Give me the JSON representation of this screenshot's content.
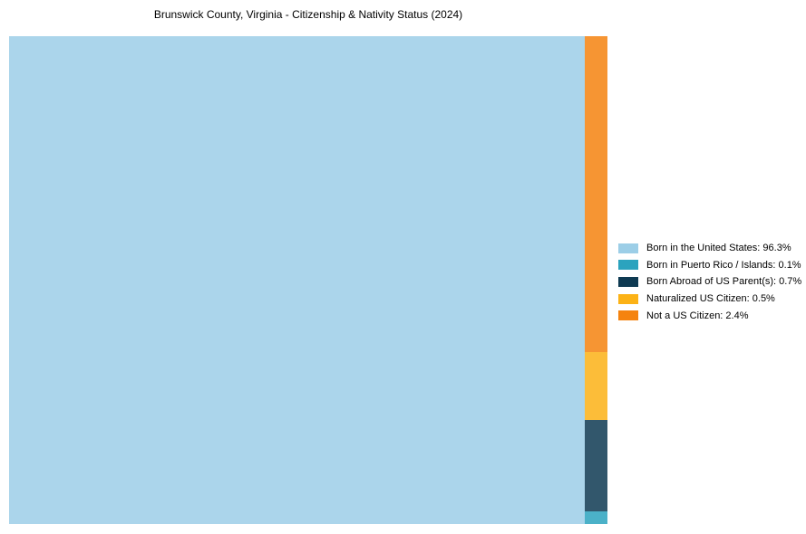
{
  "title": "Brunswick County, Virginia - Citizenship & Nativity Status (2024)",
  "colors": {
    "background": "#ffffff",
    "born_in_us": "#9CCEE7",
    "born_in_puerto_rico": "#2BA3BE",
    "born_abroad": "#0E3A52",
    "naturalized": "#FCB216",
    "not_citizen": "#F5830F"
  },
  "legend": {
    "items": [
      {
        "label": "Born in the United States: 96.3%",
        "color": "#9CCEE7"
      },
      {
        "label": "Born in Puerto Rico / Islands: 0.1%",
        "color": "#2BA3BE"
      },
      {
        "label": "Born Abroad of US Parent(s): 0.7%",
        "color": "#0E3A52"
      },
      {
        "label": "Naturalized US Citizen: 0.5%",
        "color": "#FCB216"
      },
      {
        "label": "Not a US Citizen: 2.4%",
        "color": "#F5830F"
      }
    ]
  },
  "chart_data": {
    "type": "treemap",
    "title": "Brunswick County, Virginia - Citizenship & Nativity Status (2024)",
    "categories": [
      "Born in the United States",
      "Born in Puerto Rico / Islands",
      "Born Abroad of US Parent(s)",
      "Naturalized US Citizen",
      "Not a US Citizen"
    ],
    "values": [
      96.3,
      0.1,
      0.7,
      0.5,
      2.4
    ],
    "unit": "%",
    "colors": [
      "#9CCEE7",
      "#2BA3BE",
      "#0E3A52",
      "#FCB216",
      "#F5830F"
    ],
    "legend_position": "right",
    "layout": "large US-born block left, remainder stacked in right column (top to bottom: Not a US Citizen, Naturalized, Born Abroad, Puerto Rico / Islands)"
  }
}
